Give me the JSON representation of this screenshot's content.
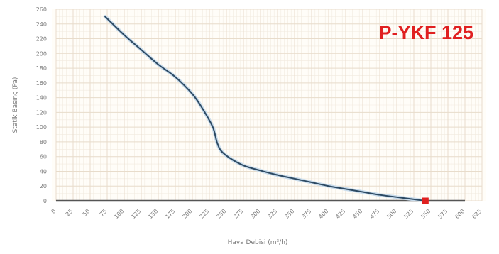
{
  "chart_data": {
    "type": "line",
    "title": "",
    "annotation": "P-YKF 125",
    "xlabel": "Hava Debisi (m³/h)",
    "ylabel": "Statik Basınç (Pa)",
    "xlim": [
      0,
      625
    ],
    "ylim": [
      0,
      260
    ],
    "x_ticks": [
      "0",
      "25",
      "50",
      "75",
      "100",
      "125",
      "150",
      "175",
      "200",
      "225",
      "250",
      "275",
      "300",
      "325",
      "350",
      "375",
      "400",
      "425",
      "450",
      "475",
      "500",
      "525",
      "550",
      "575",
      "600",
      "625"
    ],
    "y_ticks": [
      "0",
      "20",
      "40",
      "60",
      "80",
      "100",
      "120",
      "140",
      "160",
      "180",
      "200",
      "220",
      "240",
      "260"
    ],
    "grid": true,
    "colors": {
      "curve": "#2d4a63",
      "baseline": "#555555",
      "grid_major": "#e8dccb",
      "grid_minor": "#f2eadf",
      "point": "#e02020",
      "annotation": "#e02020"
    },
    "series": [
      {
        "values": [
          {
            "x": 72,
            "y": 250
          },
          {
            "x": 100,
            "y": 225
          },
          {
            "x": 125,
            "y": 205
          },
          {
            "x": 150,
            "y": 185
          },
          {
            "x": 175,
            "y": 168
          },
          {
            "x": 200,
            "y": 145
          },
          {
            "x": 215,
            "y": 125
          },
          {
            "x": 230,
            "y": 100
          },
          {
            "x": 236,
            "y": 80
          },
          {
            "x": 242,
            "y": 68
          },
          {
            "x": 255,
            "y": 58
          },
          {
            "x": 275,
            "y": 48
          },
          {
            "x": 300,
            "y": 41
          },
          {
            "x": 325,
            "y": 35
          },
          {
            "x": 350,
            "y": 30
          },
          {
            "x": 375,
            "y": 25
          },
          {
            "x": 400,
            "y": 20
          },
          {
            "x": 425,
            "y": 16
          },
          {
            "x": 450,
            "y": 12
          },
          {
            "x": 475,
            "y": 8
          },
          {
            "x": 500,
            "y": 5
          },
          {
            "x": 525,
            "y": 2
          },
          {
            "x": 542,
            "y": 0
          }
        ]
      }
    ],
    "baseline": {
      "from": 0,
      "to": 600,
      "y": 0
    },
    "operating_point": {
      "x": 542,
      "y": 0
    }
  }
}
